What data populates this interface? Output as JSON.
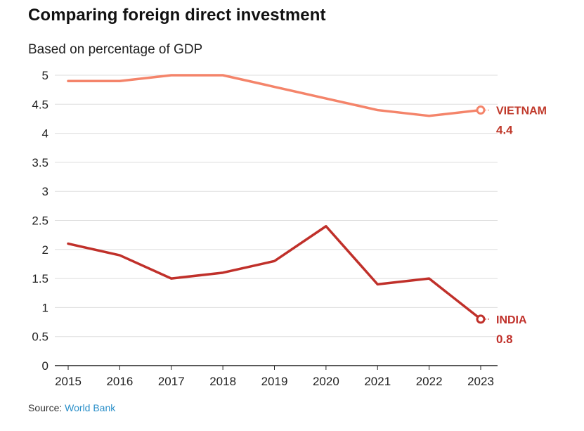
{
  "header": {
    "title": "Comparing foreign direct investment",
    "subtitle": "Based on percentage of GDP"
  },
  "footer": {
    "source_prefix": "Source: ",
    "source_link": "World Bank"
  },
  "colors": {
    "vietnam": "#f4846a",
    "india": "#c0302a",
    "vietnam_label": "#c0392b",
    "india_label": "#c0302a",
    "grid": "#dddddd",
    "axis": "#222222"
  },
  "chart_data": {
    "type": "line",
    "x": [
      2015,
      2016,
      2017,
      2018,
      2019,
      2020,
      2021,
      2022,
      2023
    ],
    "xticks": [
      "2015",
      "2016",
      "2017",
      "2018",
      "2019",
      "2020",
      "2021",
      "2022",
      "2023"
    ],
    "yticks": [
      "0",
      "0.5",
      "1",
      "1.5",
      "2",
      "2.5",
      "3",
      "3.5",
      "4",
      "4.5",
      "5"
    ],
    "ylim": [
      0,
      5
    ],
    "grid": true,
    "series": [
      {
        "name": "VIETNAM",
        "end_value": "4.4",
        "values": [
          4.9,
          4.9,
          5.0,
          5.0,
          4.8,
          4.6,
          4.4,
          4.3,
          4.4
        ]
      },
      {
        "name": "INDIA",
        "end_value": "0.8",
        "values": [
          2.1,
          1.9,
          1.5,
          1.6,
          1.8,
          2.4,
          1.4,
          1.5,
          0.8
        ]
      }
    ]
  }
}
